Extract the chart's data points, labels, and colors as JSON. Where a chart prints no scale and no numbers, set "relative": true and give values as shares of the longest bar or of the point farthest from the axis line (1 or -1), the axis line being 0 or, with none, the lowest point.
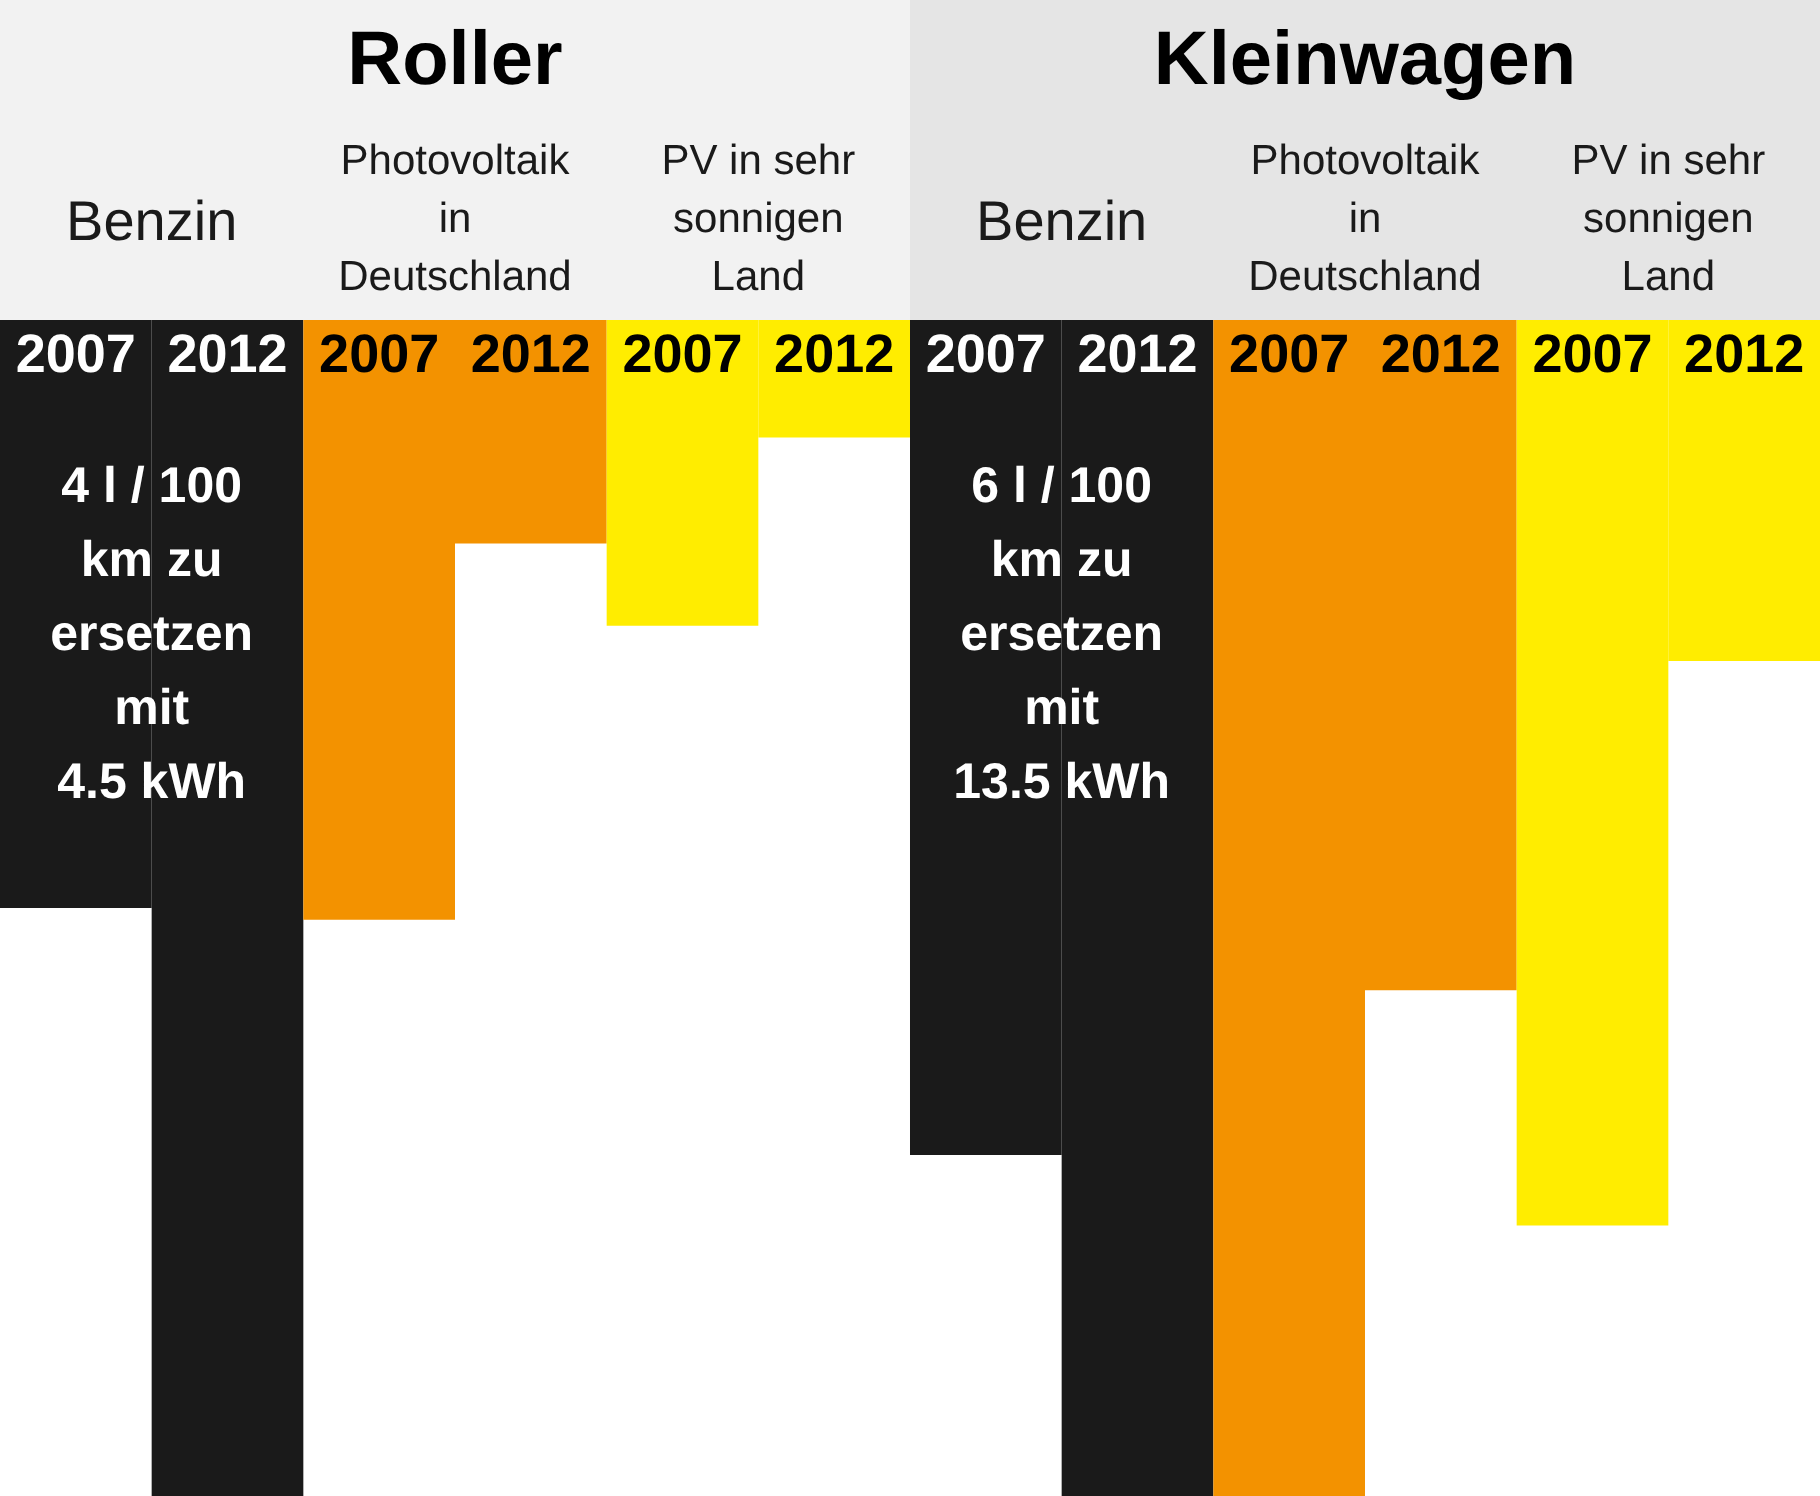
{
  "chart_data": {
    "type": "bar",
    "relative": true,
    "categories": [
      "2007",
      "2012",
      "2007",
      "2012",
      "2007",
      "2012",
      "2007",
      "2012",
      "2007",
      "2012",
      "2007",
      "2012"
    ],
    "values": [
      -0.5,
      -1,
      -0.51,
      -0.19,
      -0.26,
      -0.1,
      -0.71,
      -1,
      -1,
      -0.57,
      -0.77,
      -0.29
    ],
    "colors": [
      "#1a1a1a",
      "#1a1a1a",
      "#f39200",
      "#f39200",
      "#ffed00",
      "#ffed00",
      "#1a1a1a",
      "#1a1a1a",
      "#f39200",
      "#f39200",
      "#ffed00",
      "#ffed00"
    ],
    "annotations": [
      "Roller",
      "Kleinwagen",
      "Benzin",
      "Photovoltaik\nin\nDeutschland",
      "PV in sehr\nsonnigen\nLand",
      "Benzin",
      "Photovoltaik\nin\nDeutschland",
      "PV in sehr\nsonnigen\nLand",
      "4 l / 100\nkm zu\nersetzen\nmit\n4.5 kWh",
      "6 l / 100\nkm zu\nersetzen\nmit\n13.5 kWh"
    ]
  }
}
